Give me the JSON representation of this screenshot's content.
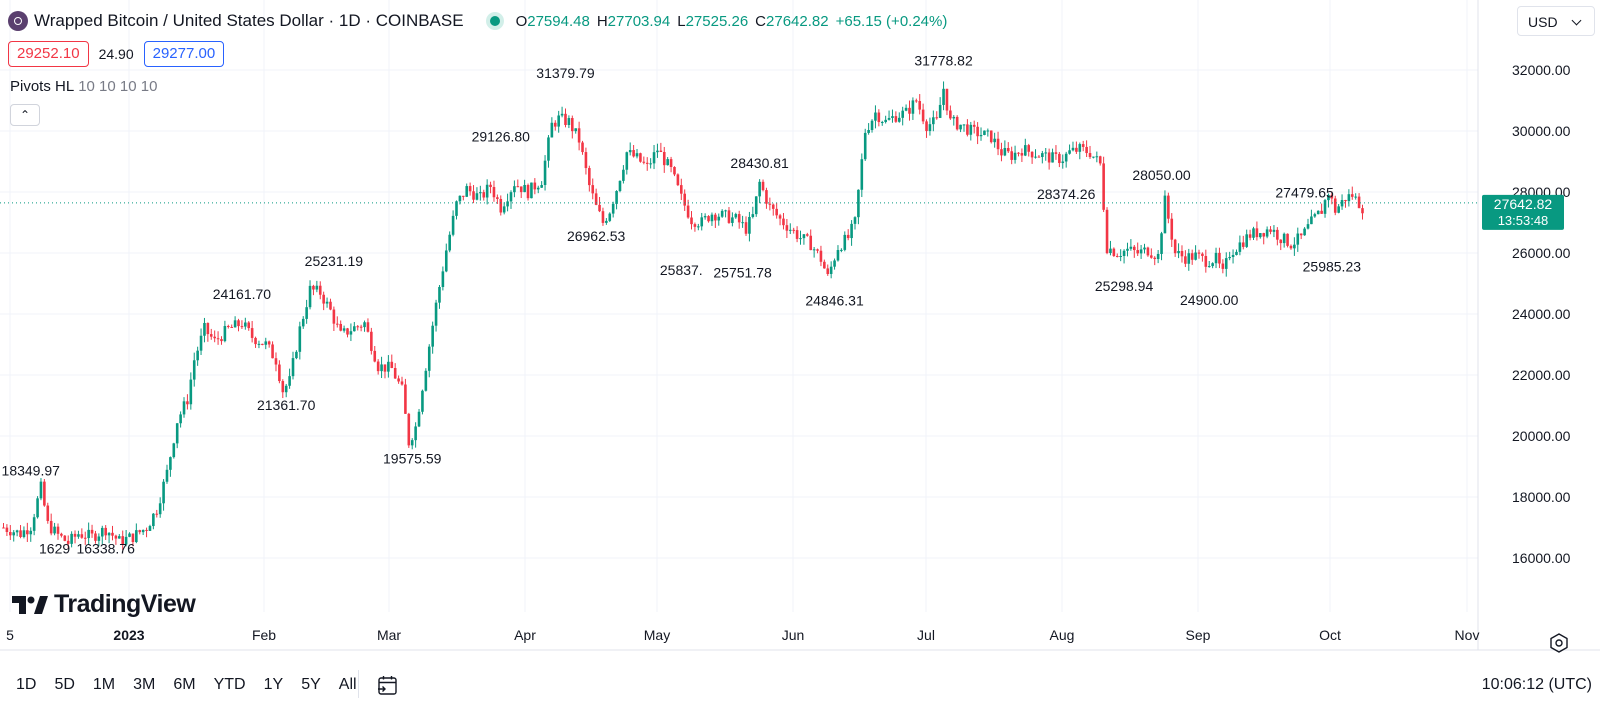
{
  "header": {
    "title": "Wrapped Bitcoin / United States Dollar · 1D · COINBASE",
    "ohlc": [
      {
        "k": "O",
        "v": "27594.48"
      },
      {
        "k": "H",
        "v": "27703.94"
      },
      {
        "k": "L",
        "v": "27525.26"
      },
      {
        "k": "C",
        "v": "27642.82"
      }
    ],
    "change": "+65.15 (+0.24%)",
    "sell_price": "29252.10",
    "spread": "24.90",
    "buy_price": "29277.00",
    "indicator_name": "Pivots HL",
    "indicator_params": "10 10 10 10",
    "currency": "USD"
  },
  "bottom": {
    "ranges": [
      "1D",
      "5D",
      "1M",
      "3M",
      "6M",
      "YTD",
      "1Y",
      "5Y",
      "All"
    ],
    "time": "10:06:12 (UTC)"
  },
  "logo_text": "TradingView",
  "colors": {
    "up": "#089981",
    "down": "#f23645",
    "accent": "#2962ff",
    "grid": "#f0f3fa"
  },
  "chart_data": {
    "type": "candlestick",
    "symbol": "Wrapped Bitcoin / United States Dollar",
    "interval": "1D",
    "exchange": "COINBASE",
    "ylim": [
      14500,
      33500
    ],
    "y_ticks": [
      16000,
      18000,
      20000,
      22000,
      24000,
      26000,
      28000,
      30000,
      32000
    ],
    "y_tick_labels": [
      "16000.00",
      "18000.00",
      "20000.00",
      "22000.00",
      "24000.00",
      "26000.00",
      "28000.00",
      "30000.00",
      "32000.00"
    ],
    "x_labels": [
      "5",
      "2023",
      "Feb",
      "Mar",
      "Apr",
      "May",
      "Jun",
      "Jul",
      "Aug",
      "Sep",
      "Oct",
      "Nov"
    ],
    "grid": true,
    "last_price": "27642.82",
    "countdown": "13:53:48",
    "close_path": [
      [
        0,
        17000
      ],
      [
        5,
        16800
      ],
      [
        8,
        17050
      ],
      [
        11,
        18300
      ],
      [
        13,
        17100
      ],
      [
        16,
        16750
      ],
      [
        19,
        16500
      ],
      [
        22,
        16800
      ],
      [
        26,
        16700
      ],
      [
        30,
        16950
      ],
      [
        34,
        16550
      ],
      [
        38,
        16700
      ],
      [
        42,
        17000
      ],
      [
        45,
        17600
      ],
      [
        48,
        18800
      ],
      [
        51,
        20500
      ],
      [
        54,
        21200
      ],
      [
        56,
        22500
      ],
      [
        59,
        23500
      ],
      [
        62,
        23100
      ],
      [
        66,
        23500
      ],
      [
        70,
        23700
      ],
      [
        73,
        23250
      ],
      [
        77,
        23000
      ],
      [
        80,
        22500
      ],
      [
        82,
        21500
      ],
      [
        84,
        21800
      ],
      [
        87,
        23500
      ],
      [
        90,
        24800
      ],
      [
        93,
        24700
      ],
      [
        96,
        24100
      ],
      [
        99,
        23300
      ],
      [
        102,
        23500
      ],
      [
        106,
        23700
      ],
      [
        110,
        22300
      ],
      [
        114,
        22200
      ],
      [
        117,
        21500
      ],
      [
        119,
        19800
      ],
      [
        121,
        20300
      ],
      [
        124,
        22300
      ],
      [
        127,
        24300
      ],
      [
        130,
        26100
      ],
      [
        133,
        27600
      ],
      [
        136,
        28100
      ],
      [
        140,
        27800
      ],
      [
        143,
        28200
      ],
      [
        146,
        27500
      ],
      [
        150,
        28300
      ],
      [
        154,
        28000
      ],
      [
        158,
        28400
      ],
      [
        161,
        30200
      ],
      [
        163,
        30400
      ],
      [
        166,
        30300
      ],
      [
        169,
        29700
      ],
      [
        172,
        28200
      ],
      [
        174,
        27500
      ],
      [
        176,
        27000
      ],
      [
        178,
        27400
      ],
      [
        180,
        28100
      ],
      [
        183,
        29300
      ],
      [
        186,
        29100
      ],
      [
        189,
        28800
      ],
      [
        192,
        29400
      ],
      [
        196,
        28700
      ],
      [
        199,
        27800
      ],
      [
        202,
        27100
      ],
      [
        205,
        27000
      ],
      [
        208,
        27300
      ],
      [
        212,
        27200
      ],
      [
        215,
        27100
      ],
      [
        218,
        26800
      ],
      [
        220,
        27200
      ],
      [
        222,
        28300
      ],
      [
        225,
        27500
      ],
      [
        228,
        27100
      ],
      [
        231,
        26800
      ],
      [
        234,
        26500
      ],
      [
        237,
        26300
      ],
      [
        240,
        25800
      ],
      [
        242,
        25200
      ],
      [
        245,
        26200
      ],
      [
        248,
        26500
      ],
      [
        250,
        27000
      ],
      [
        253,
        30000
      ],
      [
        256,
        30600
      ],
      [
        259,
        30300
      ],
      [
        262,
        30500
      ],
      [
        265,
        30600
      ],
      [
        268,
        31000
      ],
      [
        271,
        30200
      ],
      [
        274,
        30300
      ],
      [
        276,
        31400
      ],
      [
        278,
        30300
      ],
      [
        281,
        30200
      ],
      [
        284,
        30000
      ],
      [
        287,
        29900
      ],
      [
        290,
        29800
      ],
      [
        293,
        29300
      ],
      [
        296,
        29200
      ],
      [
        299,
        29400
      ],
      [
        302,
        29300
      ],
      [
        305,
        29200
      ],
      [
        308,
        29100
      ],
      [
        311,
        29100
      ],
      [
        313,
        29300
      ],
      [
        316,
        29400
      ],
      [
        319,
        29300
      ],
      [
        322,
        28900
      ],
      [
        324,
        26200
      ],
      [
        327,
        26000
      ],
      [
        330,
        26100
      ],
      [
        333,
        26000
      ],
      [
        336,
        26100
      ],
      [
        339,
        25900
      ],
      [
        341,
        27700
      ],
      [
        344,
        26000
      ],
      [
        347,
        25850
      ],
      [
        350,
        25900
      ],
      [
        353,
        25750
      ],
      [
        356,
        25800
      ],
      [
        358,
        25300
      ],
      [
        360,
        26000
      ],
      [
        363,
        26300
      ],
      [
        366,
        26600
      ],
      [
        369,
        26700
      ],
      [
        372,
        26800
      ],
      [
        375,
        26500
      ],
      [
        378,
        26300
      ],
      [
        381,
        26500
      ],
      [
        384,
        27000
      ],
      [
        387,
        27400
      ],
      [
        389,
        28000
      ],
      [
        391,
        27400
      ],
      [
        394,
        27800
      ],
      [
        396,
        27900
      ],
      [
        399,
        27500
      ]
    ],
    "pivot_labels": [
      {
        "text": "18349.97",
        "x": 8,
        "y": 18700
      },
      {
        "text": "1629",
        "x": 15,
        "y": 16150
      },
      {
        "text": "16338.76",
        "x": 30,
        "y": 16150
      },
      {
        "text": "24161.70",
        "x": 70,
        "y": 24500
      },
      {
        "text": "21361.70",
        "x": 83,
        "y": 20850
      },
      {
        "text": "25231.19",
        "x": 97,
        "y": 25580
      },
      {
        "text": "19575.59",
        "x": 120,
        "y": 19100
      },
      {
        "text": "29126.80",
        "x": 146,
        "y": 29650
      },
      {
        "text": "31379.79",
        "x": 165,
        "y": 31730
      },
      {
        "text": "26962.53",
        "x": 174,
        "y": 26400
      },
      {
        "text": "28430.81",
        "x": 222,
        "y": 28780
      },
      {
        "text": "25837.",
        "x": 199,
        "y": 25280
      },
      {
        "text": "25751.78",
        "x": 217,
        "y": 25200
      },
      {
        "text": "24846.31",
        "x": 244,
        "y": 24280
      },
      {
        "text": "31778.82",
        "x": 276,
        "y": 32140
      },
      {
        "text": "28374.26",
        "x": 312,
        "y": 27770
      },
      {
        "text": "25298.94",
        "x": 329,
        "y": 24750
      },
      {
        "text": "28050.00",
        "x": 340,
        "y": 28400
      },
      {
        "text": "24900.00",
        "x": 354,
        "y": 24300
      },
      {
        "text": "27479.65",
        "x": 382,
        "y": 27820
      },
      {
        "text": "25985.23",
        "x": 390,
        "y": 25400
      }
    ]
  }
}
